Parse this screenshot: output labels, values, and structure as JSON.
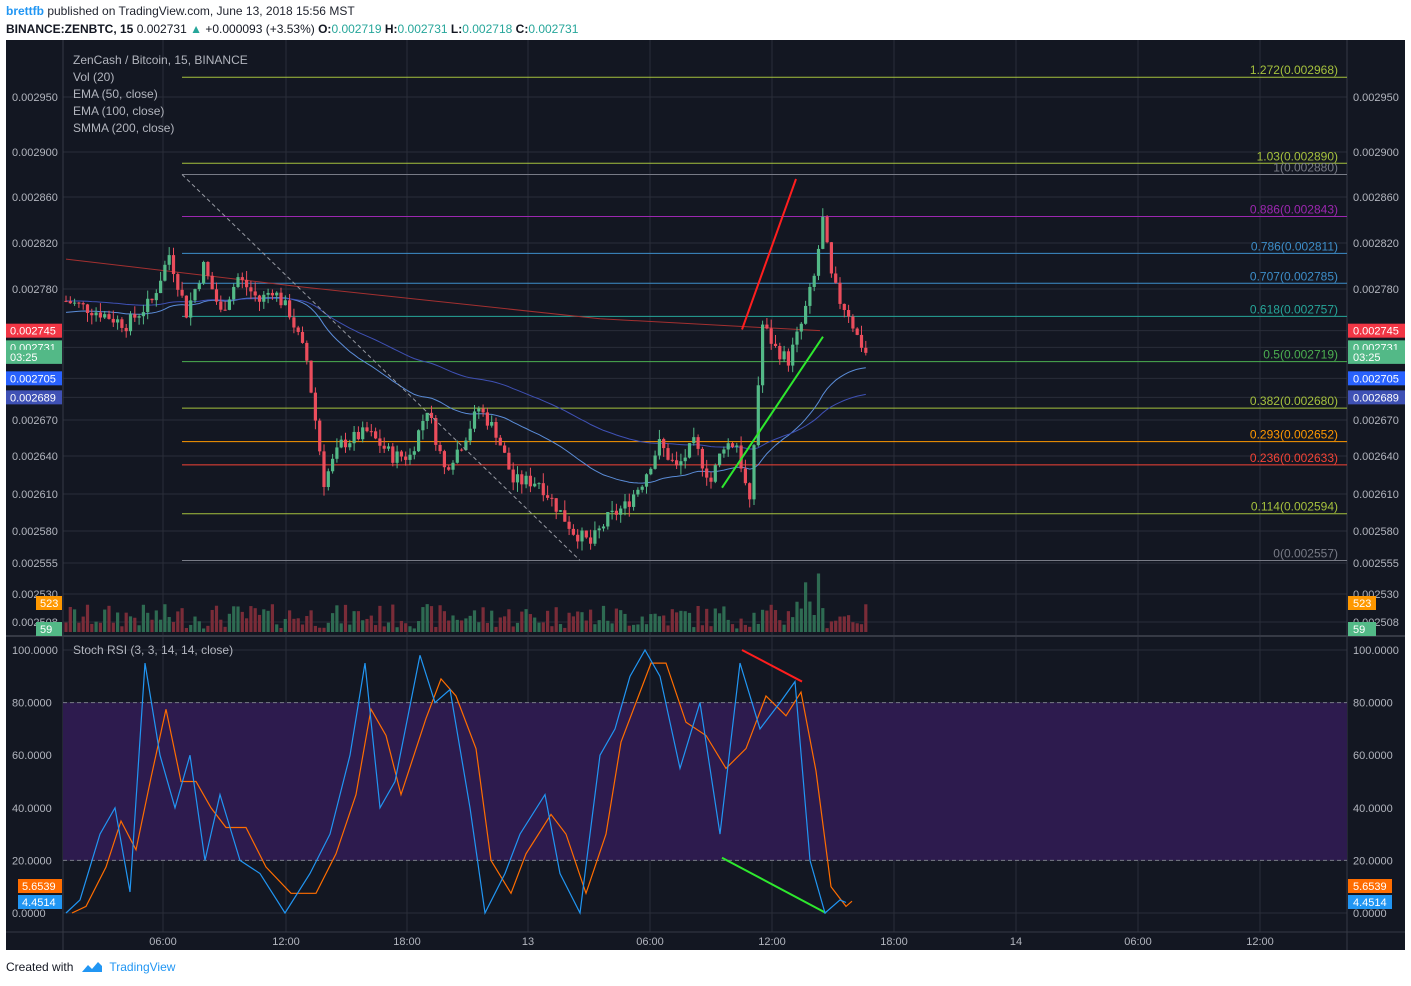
{
  "header": {
    "user": "brettfb",
    "published": " published on TradingView.com, June 13, 2018 15:56 MST",
    "symbol": "BINANCE:ZENBTC, 15",
    "price": "0.002731",
    "change": "+0.000093 (+3.53%)",
    "o_label": "O:",
    "o": "0.002719",
    "h_label": "H:",
    "h": "0.002731",
    "l_label": "L:",
    "l": "0.002718",
    "c_label": "C:",
    "c": "0.002731"
  },
  "footer": {
    "created": "Created with",
    "brand": "TradingView"
  },
  "colors": {
    "bg": "#131722",
    "up": "#53b987",
    "down": "#eb4d5c",
    "grid": "#2a2e39",
    "rsi_band": "#2d1b4e"
  },
  "chart_data": [
    {
      "type": "candlestick",
      "title": "ZenCash / Bitcoin, 15, BINANCE",
      "indicators": [
        "Vol (20)",
        "EMA (50, close)",
        "EMA (100, close)",
        "SMMA (200, close)"
      ],
      "x_ticks": [
        "06:00",
        "12:00",
        "18:00",
        "13",
        "06:00",
        "12:00",
        "18:00",
        "14",
        "06:00",
        "12:00"
      ],
      "y_ticks": [
        "0.002950",
        "0.002900",
        "0.002860",
        "0.002820",
        "0.002780",
        "0.002745",
        "0.002731",
        "0.002705",
        "0.002689",
        "0.002670",
        "0.002640",
        "0.002610",
        "0.002580",
        "0.002555",
        "0.002530",
        "0.002508"
      ],
      "ylim": [
        0.0025,
        0.00298
      ],
      "fib_levels": [
        {
          "label": "1.272(0.002968)",
          "ratio": 1.272,
          "price": 0.002968,
          "color": "#a5c13d"
        },
        {
          "label": "1.03(0.002890)",
          "ratio": 1.03,
          "price": 0.00289,
          "color": "#a5c13d"
        },
        {
          "label": "1(0.002880)",
          "ratio": 1,
          "price": 0.00288,
          "color": "#787b86"
        },
        {
          "label": "0.886(0.002843)",
          "ratio": 0.886,
          "price": 0.002843,
          "color": "#9c27b0"
        },
        {
          "label": "0.786(0.002811)",
          "ratio": 0.786,
          "price": 0.002811,
          "color": "#3d8ec9"
        },
        {
          "label": "0.707(0.002785)",
          "ratio": 0.707,
          "price": 0.002785,
          "color": "#3d8ec9"
        },
        {
          "label": "0.618(0.002757)",
          "ratio": 0.618,
          "price": 0.002757,
          "color": "#26a69a"
        },
        {
          "label": "0.5(0.002719)",
          "ratio": 0.5,
          "price": 0.002719,
          "color": "#4caf50"
        },
        {
          "label": "0.382(0.002680)",
          "ratio": 0.382,
          "price": 0.00268,
          "color": "#a5c13d"
        },
        {
          "label": "0.293(0.002652)",
          "ratio": 0.293,
          "price": 0.002652,
          "color": "#ff9800"
        },
        {
          "label": "0.236(0.002633)",
          "ratio": 0.236,
          "price": 0.002633,
          "color": "#f44336"
        },
        {
          "label": "0.114(0.002594)",
          "ratio": 0.114,
          "price": 0.002594,
          "color": "#a5c13d"
        },
        {
          "label": "0(0.002557)",
          "ratio": 0,
          "price": 0.002557,
          "color": "#787b86"
        }
      ],
      "price_tags": [
        {
          "label": "0.002745",
          "price": 0.002745,
          "color": "#f23645"
        },
        {
          "label": "0.002731",
          "price": 0.002731,
          "color": "#53b987"
        },
        {
          "label": "03:25",
          "price": 0.002723,
          "color": "#53b987"
        },
        {
          "label": "0.002705",
          "price": 0.002705,
          "color": "#2962ff"
        },
        {
          "label": "0.002689",
          "price": 0.002689,
          "color": "#3f51b5"
        }
      ],
      "volume_tags": [
        {
          "label": "523",
          "value": 523,
          "color": "#ff9800"
        },
        {
          "label": "59",
          "value": 59,
          "color": "#53b987"
        }
      ]
    },
    {
      "type": "line",
      "title": "Stoch RSI (3, 3, 14, 14, close)",
      "y_ticks": [
        "100.0000",
        "80.0000",
        "60.0000",
        "40.0000",
        "20.0000",
        "0.0000"
      ],
      "ylim": [
        0,
        100
      ],
      "band": [
        20,
        80
      ],
      "value_tags": [
        {
          "label": "5.6539",
          "value": 5.6539,
          "color": "#ff6d00"
        },
        {
          "label": "4.4514",
          "value": 4.4514,
          "color": "#2196f3"
        }
      ]
    }
  ]
}
